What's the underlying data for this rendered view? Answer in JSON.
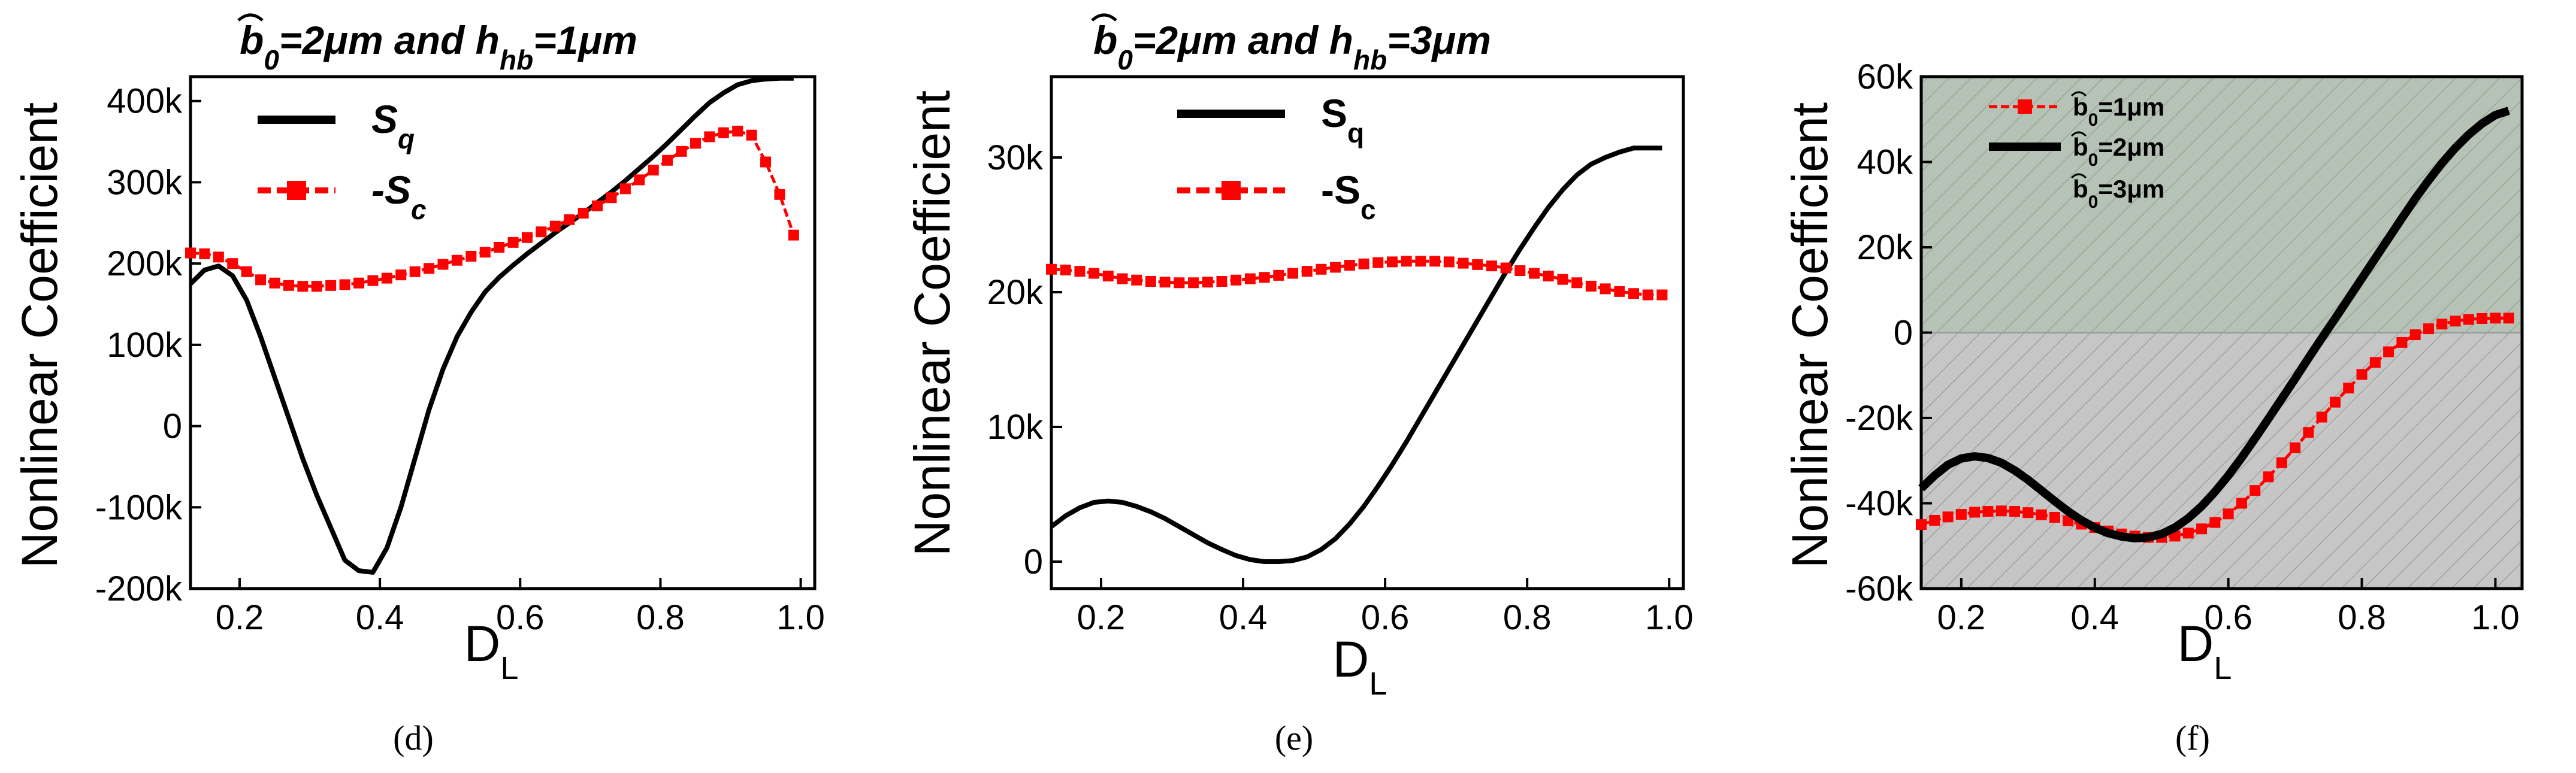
{
  "figure": {
    "caption_d": "(d)",
    "caption_e": "(e)",
    "caption_f": "(f)"
  },
  "colors": {
    "sq": "#000000",
    "sc": "#ff0000",
    "shade_top": "#b7c2b7",
    "shade_bottom": "#c6c6c6"
  },
  "chart_data": [
    {
      "id": "d",
      "type": "line",
      "title_text": "=2μm and h",
      "title_sub": "hb",
      "title_end": "=1μm",
      "title_b": "b",
      "title_b_sub": "0",
      "xlabel": "D",
      "xlabel_sub": "L",
      "ylabel": "Nonlinear Coefficient",
      "xlim": [
        0.13,
        1.02
      ],
      "ylim": [
        -200000,
        430000
      ],
      "xticks": [
        0.2,
        0.4,
        0.6,
        0.8,
        1.0
      ],
      "xtick_labels": [
        "0.2",
        "0.4",
        "0.6",
        "0.8",
        "1.0"
      ],
      "yticks": [
        -200000,
        -100000,
        0,
        100000,
        200000,
        300000,
        400000
      ],
      "ytick_labels": [
        "-200k",
        "-100k",
        "0",
        "100k",
        "200k",
        "300k",
        "400k"
      ],
      "legend": [
        {
          "name": "S",
          "sub": "q",
          "style": "solid"
        },
        {
          "name": "-S",
          "sub": "c",
          "style": "dashed-square"
        }
      ],
      "series": [
        {
          "name": "Sq",
          "x": [
            0.13,
            0.15,
            0.17,
            0.19,
            0.21,
            0.23,
            0.25,
            0.27,
            0.29,
            0.31,
            0.33,
            0.35,
            0.37,
            0.39,
            0.41,
            0.43,
            0.45,
            0.47,
            0.49,
            0.51,
            0.53,
            0.55,
            0.57,
            0.59,
            0.61,
            0.63,
            0.65,
            0.67,
            0.69,
            0.71,
            0.73,
            0.75,
            0.77,
            0.79,
            0.81,
            0.83,
            0.85,
            0.87,
            0.89,
            0.91,
            0.93,
            0.95,
            0.97,
            0.99
          ],
          "y": [
            175000,
            192000,
            197000,
            185000,
            155000,
            110000,
            60000,
            10000,
            -40000,
            -85000,
            -125000,
            -165000,
            -178000,
            -180000,
            -150000,
            -100000,
            -40000,
            20000,
            70000,
            110000,
            140000,
            165000,
            183000,
            198000,
            212000,
            225000,
            238000,
            250000,
            262000,
            275000,
            288000,
            302000,
            317000,
            332000,
            348000,
            365000,
            382000,
            398000,
            410000,
            420000,
            425000,
            427000,
            428000,
            428000
          ]
        },
        {
          "name": "-Sc",
          "x": [
            0.13,
            0.15,
            0.17,
            0.19,
            0.21,
            0.23,
            0.25,
            0.27,
            0.29,
            0.31,
            0.33,
            0.35,
            0.37,
            0.39,
            0.41,
            0.43,
            0.45,
            0.47,
            0.49,
            0.51,
            0.53,
            0.55,
            0.57,
            0.59,
            0.61,
            0.63,
            0.65,
            0.67,
            0.69,
            0.71,
            0.73,
            0.75,
            0.77,
            0.79,
            0.81,
            0.83,
            0.85,
            0.87,
            0.89,
            0.91,
            0.93,
            0.95,
            0.97,
            0.99
          ],
          "y": [
            213000,
            212000,
            208000,
            200000,
            190000,
            180000,
            176000,
            173000,
            172000,
            172000,
            173000,
            174000,
            176000,
            179000,
            182000,
            186000,
            190000,
            194000,
            199000,
            204000,
            209000,
            214000,
            220000,
            226000,
            232000,
            239000,
            246000,
            254000,
            262000,
            271000,
            281000,
            292000,
            303000,
            315000,
            327000,
            338000,
            348000,
            356000,
            361000,
            363000,
            358000,
            325000,
            285000,
            235000
          ]
        }
      ]
    },
    {
      "id": "e",
      "type": "line",
      "title_text": "=2μm and h",
      "title_sub": "hb",
      "title_end": "=3μm",
      "title_b": "b",
      "title_b_sub": "0",
      "xlabel": "D",
      "xlabel_sub": "L",
      "ylabel": "Nonlinear Coefficient",
      "xlim": [
        0.13,
        1.02
      ],
      "ylim": [
        -2000,
        36000
      ],
      "xticks": [
        0.2,
        0.4,
        0.6,
        0.8,
        1.0
      ],
      "xtick_labels": [
        "0.2",
        "0.4",
        "0.6",
        "0.8",
        "1.0"
      ],
      "yticks": [
        0,
        10000,
        20000,
        30000
      ],
      "ytick_labels": [
        "0",
        "10k",
        "20k",
        "30k"
      ],
      "legend": [
        {
          "name": "S",
          "sub": "q",
          "style": "solid"
        },
        {
          "name": "-S",
          "sub": "c",
          "style": "dashed-square"
        }
      ],
      "series": [
        {
          "name": "Sq",
          "x": [
            0.13,
            0.15,
            0.17,
            0.19,
            0.21,
            0.23,
            0.25,
            0.27,
            0.29,
            0.31,
            0.33,
            0.35,
            0.37,
            0.39,
            0.41,
            0.43,
            0.45,
            0.47,
            0.49,
            0.51,
            0.53,
            0.55,
            0.57,
            0.59,
            0.61,
            0.63,
            0.65,
            0.67,
            0.69,
            0.71,
            0.73,
            0.75,
            0.77,
            0.79,
            0.81,
            0.83,
            0.85,
            0.87,
            0.89,
            0.91,
            0.93,
            0.95,
            0.97,
            0.99
          ],
          "y": [
            2600,
            3400,
            4000,
            4400,
            4500,
            4400,
            4100,
            3700,
            3200,
            2600,
            2000,
            1400,
            900,
            450,
            150,
            0,
            0,
            80,
            350,
            900,
            1700,
            2800,
            4100,
            5600,
            7200,
            8900,
            10700,
            12500,
            14300,
            16100,
            17900,
            19700,
            21500,
            23200,
            24800,
            26300,
            27600,
            28700,
            29500,
            30000,
            30400,
            30700,
            30700,
            30700
          ]
        },
        {
          "name": "-Sc",
          "x": [
            0.13,
            0.15,
            0.17,
            0.19,
            0.21,
            0.23,
            0.25,
            0.27,
            0.29,
            0.31,
            0.33,
            0.35,
            0.37,
            0.39,
            0.41,
            0.43,
            0.45,
            0.47,
            0.49,
            0.51,
            0.53,
            0.55,
            0.57,
            0.59,
            0.61,
            0.63,
            0.65,
            0.67,
            0.69,
            0.71,
            0.73,
            0.75,
            0.77,
            0.79,
            0.81,
            0.83,
            0.85,
            0.87,
            0.89,
            0.91,
            0.93,
            0.95,
            0.97,
            0.99
          ],
          "y": [
            21700,
            21650,
            21550,
            21400,
            21200,
            21000,
            20900,
            20800,
            20750,
            20700,
            20700,
            20750,
            20800,
            20900,
            21000,
            21100,
            21250,
            21400,
            21550,
            21700,
            21850,
            22000,
            22100,
            22200,
            22250,
            22300,
            22300,
            22300,
            22250,
            22150,
            22050,
            21950,
            21800,
            21600,
            21400,
            21200,
            20950,
            20700,
            20450,
            20250,
            20050,
            19900,
            19800,
            19800
          ]
        }
      ]
    },
    {
      "id": "f",
      "type": "line",
      "xlabel": "D",
      "xlabel_sub": "L",
      "ylabel": "Nonlinear Coefficient",
      "xlim": [
        0.14,
        1.04
      ],
      "ylim": [
        -60000,
        60000
      ],
      "xticks": [
        0.2,
        0.4,
        0.6,
        0.8,
        1.0
      ],
      "xtick_labels": [
        "0.2",
        "0.4",
        "0.6",
        "0.8",
        "1.0"
      ],
      "yticks": [
        -60000,
        -40000,
        -20000,
        0,
        20000,
        40000,
        60000
      ],
      "ytick_labels": [
        "-60k",
        "-40k",
        "-20k",
        "0",
        "20k",
        "40k",
        "60k"
      ],
      "legend": [
        {
          "name": "b",
          "sub": "0",
          "value": "=1μm",
          "style": "dashed-square"
        },
        {
          "name": "b",
          "sub": "0",
          "value": "=2μm",
          "style": "solid"
        },
        {
          "name": "b",
          "sub": "0",
          "value": "=3μm",
          "style": "none"
        }
      ],
      "series": [
        {
          "name": "b0=1μm",
          "x": [
            0.14,
            0.16,
            0.18,
            0.2,
            0.22,
            0.24,
            0.26,
            0.28,
            0.3,
            0.32,
            0.34,
            0.36,
            0.38,
            0.4,
            0.42,
            0.44,
            0.46,
            0.48,
            0.5,
            0.52,
            0.54,
            0.56,
            0.58,
            0.6,
            0.62,
            0.64,
            0.66,
            0.68,
            0.7,
            0.72,
            0.74,
            0.76,
            0.78,
            0.8,
            0.82,
            0.84,
            0.86,
            0.88,
            0.9,
            0.92,
            0.94,
            0.96,
            0.98,
            1.0,
            1.02
          ],
          "y": [
            -45000,
            -44000,
            -43200,
            -42600,
            -42100,
            -41900,
            -41800,
            -41900,
            -42200,
            -42700,
            -43300,
            -44100,
            -44900,
            -45700,
            -46500,
            -47200,
            -47700,
            -48000,
            -48000,
            -47700,
            -47000,
            -46000,
            -44500,
            -42500,
            -40000,
            -37000,
            -33800,
            -30500,
            -27000,
            -23400,
            -19800,
            -16300,
            -13000,
            -9800,
            -7000,
            -4500,
            -2300,
            -500,
            900,
            2000,
            2700,
            3100,
            3300,
            3400,
            3400
          ]
        },
        {
          "name": "b0=2μm",
          "x": [
            0.14,
            0.16,
            0.18,
            0.2,
            0.22,
            0.24,
            0.26,
            0.28,
            0.3,
            0.32,
            0.34,
            0.36,
            0.38,
            0.4,
            0.42,
            0.44,
            0.46,
            0.48,
            0.5,
            0.52,
            0.54,
            0.56,
            0.58,
            0.6,
            0.62,
            0.64,
            0.66,
            0.68,
            0.7,
            0.72,
            0.74,
            0.76,
            0.78,
            0.8,
            0.82,
            0.84,
            0.86,
            0.88,
            0.9,
            0.92,
            0.94,
            0.96,
            0.98,
            1.0,
            1.02
          ],
          "y": [
            -36500,
            -33500,
            -31000,
            -29500,
            -29000,
            -29400,
            -30500,
            -32300,
            -34500,
            -37000,
            -39500,
            -41900,
            -44000,
            -45700,
            -47000,
            -47800,
            -48200,
            -48000,
            -47200,
            -45700,
            -43500,
            -40700,
            -37300,
            -33500,
            -29300,
            -24800,
            -20200,
            -15500,
            -10800,
            -6000,
            -1300,
            3300,
            8000,
            12700,
            17400,
            22100,
            26800,
            31400,
            35700,
            39700,
            43300,
            46400,
            49000,
            51000,
            52000
          ]
        }
      ]
    }
  ]
}
